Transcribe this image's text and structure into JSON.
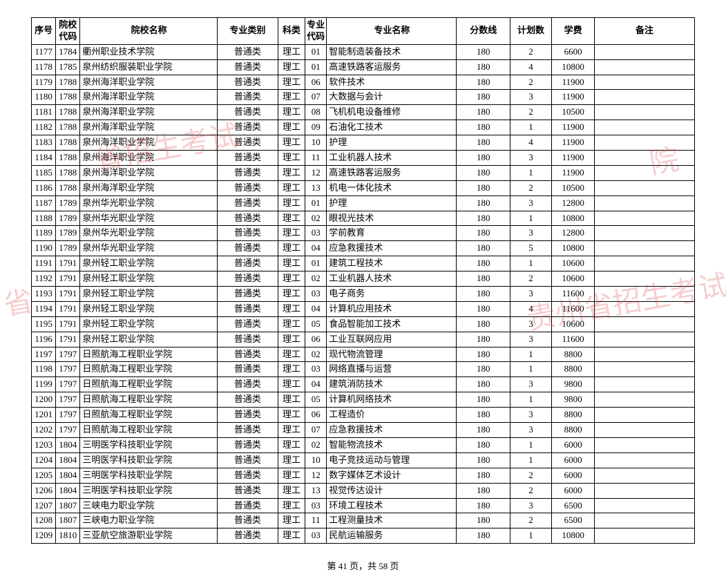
{
  "headers": {
    "seq": "序号",
    "school_code": "院校代码",
    "school_name": "院校名称",
    "category": "专业类别",
    "science": "科类",
    "major_code": "专业代码",
    "major_name": "专业名称",
    "score": "分数线",
    "plan": "计划数",
    "fee": "学费",
    "note": "备注"
  },
  "rows": [
    {
      "seq": "1177",
      "code": "1784",
      "school": "衢州职业技术学院",
      "cat": "普通类",
      "sci": "理工",
      "mcode": "01",
      "major": "智能制造装备技术",
      "score": "180",
      "plan": "2",
      "fee": "6600",
      "note": ""
    },
    {
      "seq": "1178",
      "code": "1785",
      "school": "泉州纺织服装职业学院",
      "cat": "普通类",
      "sci": "理工",
      "mcode": "01",
      "major": "高速铁路客运服务",
      "score": "180",
      "plan": "4",
      "fee": "10800",
      "note": ""
    },
    {
      "seq": "1179",
      "code": "1788",
      "school": "泉州海洋职业学院",
      "cat": "普通类",
      "sci": "理工",
      "mcode": "06",
      "major": "软件技术",
      "score": "180",
      "plan": "2",
      "fee": "11900",
      "note": ""
    },
    {
      "seq": "1180",
      "code": "1788",
      "school": "泉州海洋职业学院",
      "cat": "普通类",
      "sci": "理工",
      "mcode": "07",
      "major": "大数据与会计",
      "score": "180",
      "plan": "3",
      "fee": "11900",
      "note": ""
    },
    {
      "seq": "1181",
      "code": "1788",
      "school": "泉州海洋职业学院",
      "cat": "普通类",
      "sci": "理工",
      "mcode": "08",
      "major": "飞机机电设备维修",
      "score": "180",
      "plan": "2",
      "fee": "10500",
      "note": ""
    },
    {
      "seq": "1182",
      "code": "1788",
      "school": "泉州海洋职业学院",
      "cat": "普通类",
      "sci": "理工",
      "mcode": "09",
      "major": "石油化工技术",
      "score": "180",
      "plan": "1",
      "fee": "11900",
      "note": ""
    },
    {
      "seq": "1183",
      "code": "1788",
      "school": "泉州海洋职业学院",
      "cat": "普通类",
      "sci": "理工",
      "mcode": "10",
      "major": "护理",
      "score": "180",
      "plan": "4",
      "fee": "11900",
      "note": ""
    },
    {
      "seq": "1184",
      "code": "1788",
      "school": "泉州海洋职业学院",
      "cat": "普通类",
      "sci": "理工",
      "mcode": "11",
      "major": "工业机器人技术",
      "score": "180",
      "plan": "3",
      "fee": "11900",
      "note": ""
    },
    {
      "seq": "1185",
      "code": "1788",
      "school": "泉州海洋职业学院",
      "cat": "普通类",
      "sci": "理工",
      "mcode": "12",
      "major": "高速铁路客运服务",
      "score": "180",
      "plan": "1",
      "fee": "11900",
      "note": ""
    },
    {
      "seq": "1186",
      "code": "1788",
      "school": "泉州海洋职业学院",
      "cat": "普通类",
      "sci": "理工",
      "mcode": "13",
      "major": "机电一体化技术",
      "score": "180",
      "plan": "2",
      "fee": "10500",
      "note": ""
    },
    {
      "seq": "1187",
      "code": "1789",
      "school": "泉州华光职业学院",
      "cat": "普通类",
      "sci": "理工",
      "mcode": "01",
      "major": "护理",
      "score": "180",
      "plan": "3",
      "fee": "12800",
      "note": ""
    },
    {
      "seq": "1188",
      "code": "1789",
      "school": "泉州华光职业学院",
      "cat": "普通类",
      "sci": "理工",
      "mcode": "02",
      "major": "眼视光技术",
      "score": "180",
      "plan": "1",
      "fee": "10800",
      "note": ""
    },
    {
      "seq": "1189",
      "code": "1789",
      "school": "泉州华光职业学院",
      "cat": "普通类",
      "sci": "理工",
      "mcode": "03",
      "major": "学前教育",
      "score": "180",
      "plan": "3",
      "fee": "12800",
      "note": ""
    },
    {
      "seq": "1190",
      "code": "1789",
      "school": "泉州华光职业学院",
      "cat": "普通类",
      "sci": "理工",
      "mcode": "04",
      "major": "应急救援技术",
      "score": "180",
      "plan": "5",
      "fee": "10800",
      "note": ""
    },
    {
      "seq": "1191",
      "code": "1791",
      "school": "泉州轻工职业学院",
      "cat": "普通类",
      "sci": "理工",
      "mcode": "01",
      "major": "建筑工程技术",
      "score": "180",
      "plan": "1",
      "fee": "10600",
      "note": ""
    },
    {
      "seq": "1192",
      "code": "1791",
      "school": "泉州轻工职业学院",
      "cat": "普通类",
      "sci": "理工",
      "mcode": "02",
      "major": "工业机器人技术",
      "score": "180",
      "plan": "2",
      "fee": "10600",
      "note": ""
    },
    {
      "seq": "1193",
      "code": "1791",
      "school": "泉州轻工职业学院",
      "cat": "普通类",
      "sci": "理工",
      "mcode": "03",
      "major": "电子商务",
      "score": "180",
      "plan": "3",
      "fee": "11600",
      "note": ""
    },
    {
      "seq": "1194",
      "code": "1791",
      "school": "泉州轻工职业学院",
      "cat": "普通类",
      "sci": "理工",
      "mcode": "04",
      "major": "计算机应用技术",
      "score": "180",
      "plan": "4",
      "fee": "11600",
      "note": ""
    },
    {
      "seq": "1195",
      "code": "1791",
      "school": "泉州轻工职业学院",
      "cat": "普通类",
      "sci": "理工",
      "mcode": "05",
      "major": "食品智能加工技术",
      "score": "180",
      "plan": "3",
      "fee": "10600",
      "note": ""
    },
    {
      "seq": "1196",
      "code": "1791",
      "school": "泉州轻工职业学院",
      "cat": "普通类",
      "sci": "理工",
      "mcode": "06",
      "major": "工业互联网应用",
      "score": "180",
      "plan": "3",
      "fee": "11600",
      "note": ""
    },
    {
      "seq": "1197",
      "code": "1797",
      "school": "日照航海工程职业学院",
      "cat": "普通类",
      "sci": "理工",
      "mcode": "02",
      "major": "现代物流管理",
      "score": "180",
      "plan": "1",
      "fee": "8800",
      "note": ""
    },
    {
      "seq": "1198",
      "code": "1797",
      "school": "日照航海工程职业学院",
      "cat": "普通类",
      "sci": "理工",
      "mcode": "03",
      "major": "网络直播与运营",
      "score": "180",
      "plan": "1",
      "fee": "8800",
      "note": ""
    },
    {
      "seq": "1199",
      "code": "1797",
      "school": "日照航海工程职业学院",
      "cat": "普通类",
      "sci": "理工",
      "mcode": "04",
      "major": "建筑消防技术",
      "score": "180",
      "plan": "3",
      "fee": "9800",
      "note": ""
    },
    {
      "seq": "1200",
      "code": "1797",
      "school": "日照航海工程职业学院",
      "cat": "普通类",
      "sci": "理工",
      "mcode": "05",
      "major": "计算机网络技术",
      "score": "180",
      "plan": "1",
      "fee": "9800",
      "note": ""
    },
    {
      "seq": "1201",
      "code": "1797",
      "school": "日照航海工程职业学院",
      "cat": "普通类",
      "sci": "理工",
      "mcode": "06",
      "major": "工程造价",
      "score": "180",
      "plan": "3",
      "fee": "8800",
      "note": ""
    },
    {
      "seq": "1202",
      "code": "1797",
      "school": "日照航海工程职业学院",
      "cat": "普通类",
      "sci": "理工",
      "mcode": "07",
      "major": "应急救援技术",
      "score": "180",
      "plan": "3",
      "fee": "8800",
      "note": ""
    },
    {
      "seq": "1203",
      "code": "1804",
      "school": "三明医学科技职业学院",
      "cat": "普通类",
      "sci": "理工",
      "mcode": "02",
      "major": "智能物流技术",
      "score": "180",
      "plan": "1",
      "fee": "6000",
      "note": ""
    },
    {
      "seq": "1204",
      "code": "1804",
      "school": "三明医学科技职业学院",
      "cat": "普通类",
      "sci": "理工",
      "mcode": "10",
      "major": "电子竞技运动与管理",
      "score": "180",
      "plan": "1",
      "fee": "6000",
      "note": ""
    },
    {
      "seq": "1205",
      "code": "1804",
      "school": "三明医学科技职业学院",
      "cat": "普通类",
      "sci": "理工",
      "mcode": "12",
      "major": "数字媒体艺术设计",
      "score": "180",
      "plan": "2",
      "fee": "6000",
      "note": ""
    },
    {
      "seq": "1206",
      "code": "1804",
      "school": "三明医学科技职业学院",
      "cat": "普通类",
      "sci": "理工",
      "mcode": "13",
      "major": "视觉传达设计",
      "score": "180",
      "plan": "2",
      "fee": "6000",
      "note": ""
    },
    {
      "seq": "1207",
      "code": "1807",
      "school": "三峡电力职业学院",
      "cat": "普通类",
      "sci": "理工",
      "mcode": "03",
      "major": "环境工程技术",
      "score": "180",
      "plan": "3",
      "fee": "6500",
      "note": ""
    },
    {
      "seq": "1208",
      "code": "1807",
      "school": "三峡电力职业学院",
      "cat": "普通类",
      "sci": "理工",
      "mcode": "11",
      "major": "工程测量技术",
      "score": "180",
      "plan": "2",
      "fee": "6500",
      "note": ""
    },
    {
      "seq": "1209",
      "code": "1810",
      "school": "三亚航空旅游职业学院",
      "cat": "普通类",
      "sci": "理工",
      "mcode": "03",
      "major": "民航运输服务",
      "score": "180",
      "plan": "1",
      "fee": "10800",
      "note": ""
    }
  ],
  "pager": {
    "text": "第 41 页，共 58 页"
  },
  "watermarks": {
    "wm1": "省招生考试",
    "wm2": "省",
    "wm3": "院",
    "wm4": "贵州省招生考试院"
  },
  "style": {
    "border_color": "#000000",
    "background": "#ffffff",
    "text_color": "#000000",
    "watermark_color": "rgba(220,60,60,0.25)",
    "font_family": "SimSun",
    "body_fontsize": 13,
    "header_fontsize": 13
  }
}
